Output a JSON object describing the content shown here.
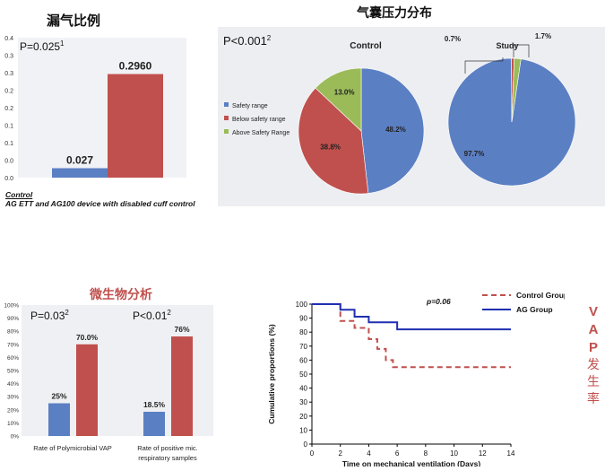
{
  "leak_chart": {
    "title": "漏气比例",
    "p_value": "P=0.025",
    "p_sup": "1",
    "chart_data": {
      "type": "bar",
      "categories": [
        "Control",
        "AG ETT and AG100 device with disabled cuff control"
      ],
      "values": [
        0.027,
        0.296
      ],
      "value_labels": [
        "0.027",
        "0.2960"
      ],
      "ylim": [
        0,
        0.4
      ],
      "y_ticks": [
        "0.0",
        "0.0",
        "0.1",
        "0.1",
        "0.2",
        "0.2",
        "0.3",
        "0.3",
        "0.4"
      ],
      "colors": [
        "#5b7fc3",
        "#c0504d"
      ]
    },
    "caption_line1": "Control",
    "caption_line2": "AG ETT and AG100 device with disabled cuff control"
  },
  "pressure_chart": {
    "title": "气囊压力分布",
    "p_value": "P<0.001",
    "p_sup": "2",
    "legend": [
      "Safety range",
      "Below safety range",
      "Above Safety Range"
    ],
    "colors": [
      "#5b7fc3",
      "#c0504d",
      "#9bbb59"
    ],
    "chart_data": [
      {
        "type": "pie",
        "title": "Control",
        "labels": [
          "Safety range",
          "Below safety range",
          "Above Safety Range"
        ],
        "values": [
          48.2,
          38.8,
          13.0
        ],
        "value_labels": [
          "48.2%",
          "38.8%",
          "13.0%"
        ]
      },
      {
        "type": "pie",
        "title": "Study",
        "labels": [
          "Safety range",
          "Below safety range",
          "Above Safety Range"
        ],
        "values": [
          97.7,
          0.7,
          1.7
        ],
        "value_labels": [
          "97.7%",
          "0.7%",
          "1.7%"
        ]
      }
    ]
  },
  "micro_chart": {
    "title": "微生物分析",
    "p_left": "P=0.03",
    "p_left_sup": "2",
    "p_right": "P<0.01",
    "p_right_sup": "2",
    "chart_data": {
      "type": "bar",
      "categories": [
        "Rate of Polymicrobial VAP",
        "Rate of positive mic. respiratory samples"
      ],
      "category_lines": [
        [
          "Rate of Polymicrobial VAP"
        ],
        [
          "Rate of positive mic.",
          "respiratory samples"
        ]
      ],
      "series": [
        {
          "values": [
            25,
            18.5
          ],
          "labels": [
            "25%",
            "18.5%"
          ]
        },
        {
          "values": [
            70.0,
            76
          ],
          "labels": [
            "70.0%",
            "76%"
          ]
        }
      ],
      "ylim": [
        0,
        100
      ],
      "y_ticks": [
        "0%",
        "10%",
        "20%",
        "30%",
        "40%",
        "50%",
        "60%",
        "70%",
        "80%",
        "90%",
        "100%"
      ],
      "colors": [
        "#5b7fc3",
        "#c0504d"
      ]
    }
  },
  "vap_chart": {
    "p_value": "p=0.06",
    "side_label_latin": [
      "V",
      "A",
      "P"
    ],
    "side_label_zh": [
      "发",
      "生",
      "率"
    ],
    "chart_data": {
      "type": "line",
      "xlabel": "Time on mechanical ventilation (Days)",
      "ylabel": "Cumulative proportions (%)",
      "xlim": [
        0,
        14
      ],
      "ylim": [
        0,
        100
      ],
      "x_ticks": [
        "0",
        "2",
        "4",
        "6",
        "8",
        "10",
        "12",
        "14"
      ],
      "y_ticks": [
        "0",
        "10",
        "20",
        "30",
        "40",
        "50",
        "60",
        "70",
        "80",
        "90",
        "100"
      ],
      "series": [
        {
          "name": "Control Group",
          "color": "#c0504d",
          "dashed": true,
          "x": [
            0,
            2,
            2,
            3,
            3,
            4,
            4,
            4.6,
            4.6,
            5.2,
            5.2,
            5.7,
            5.7,
            14
          ],
          "y": [
            100,
            100,
            88,
            88,
            83,
            83,
            75,
            75,
            68,
            68,
            60,
            60,
            55,
            55
          ]
        },
        {
          "name": "AG Group",
          "color": "#1f2fb0",
          "dashed": false,
          "x": [
            0,
            2,
            2,
            3,
            3,
            4,
            4,
            6,
            6,
            14
          ],
          "y": [
            100,
            100,
            96,
            96,
            91,
            91,
            87,
            87,
            82,
            82
          ]
        }
      ]
    }
  }
}
